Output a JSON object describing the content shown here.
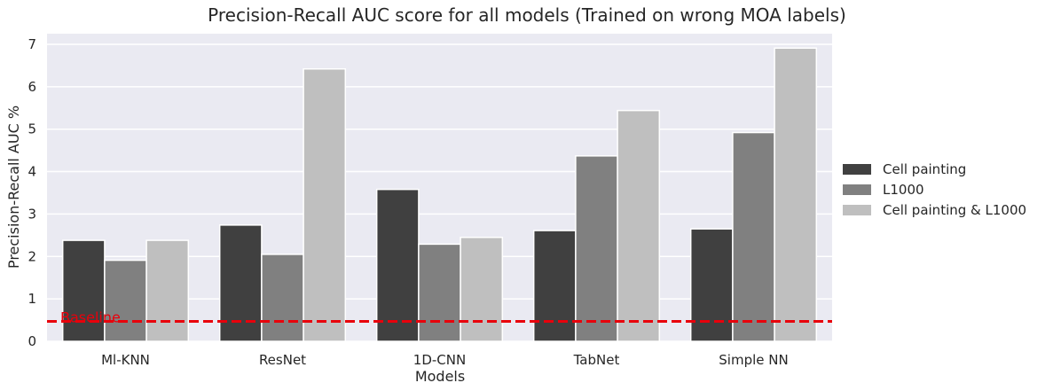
{
  "chart_data": {
    "type": "bar",
    "title": "Precision-Recall AUC score for all models (Trained on wrong MOA labels)",
    "xlabel": "Models",
    "ylabel": "Precision-Recall AUC %",
    "categories": [
      "Ml-KNN",
      "ResNet",
      "1D-CNN",
      "TabNet",
      "Simple NN"
    ],
    "series": [
      {
        "name": "Cell painting",
        "color": "#404040",
        "values": [
          2.38,
          2.74,
          3.58,
          2.61,
          2.65
        ]
      },
      {
        "name": "L1000",
        "color": "#808080",
        "values": [
          1.91,
          2.05,
          2.29,
          4.37,
          4.92
        ]
      },
      {
        "name": "Cell painting & L1000",
        "color": "#bfbfbf",
        "values": [
          2.38,
          6.42,
          2.45,
          5.44,
          6.91
        ]
      }
    ],
    "ylim": [
      0,
      7.25
    ],
    "yticks": [
      0,
      1,
      2,
      3,
      4,
      5,
      6,
      7
    ],
    "grid": true,
    "legend_position": "right",
    "baseline": {
      "label": "Baseline",
      "value": 0.47,
      "color": "#e8000b"
    }
  }
}
